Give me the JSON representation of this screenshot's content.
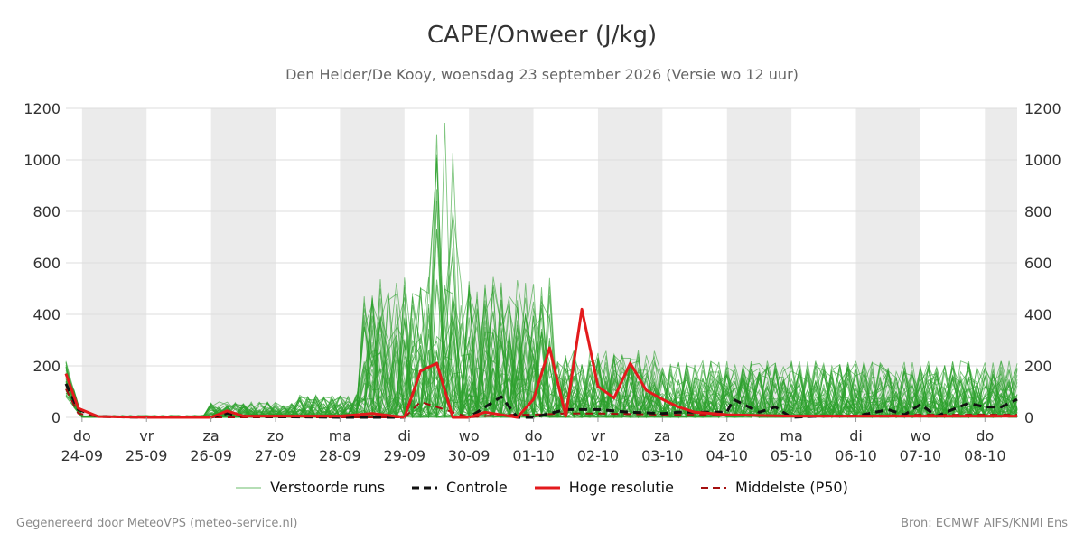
{
  "header": {
    "title": "CAPE/Onweer (J/kg)",
    "subtitle": "Den Helder/De Kooy, woensdag 23 september 2026 (Versie wo 12 uur)"
  },
  "footer": {
    "left": "Gegenereerd door MeteoVPS (meteo-service.nl)",
    "right": "Bron: ECMWF AIFS/KNMI Ens"
  },
  "colors": {
    "ensemble": "#2ca02c",
    "control": "#111111",
    "hires": "#e31a1c",
    "median": "#a50f0f",
    "weekend_band": "#ebebeb",
    "grid": "#dddddd"
  },
  "chart_data": {
    "type": "line",
    "title": "CAPE/Onweer (J/kg)",
    "ylim": [
      0,
      1200
    ],
    "yticks": [
      0,
      200,
      400,
      600,
      800,
      1000,
      1200
    ],
    "xlim": [
      -0.25,
      14.5
    ],
    "x_unit": "days since do 24-09 00 UTC",
    "grid": true,
    "legend_position": "bottom",
    "x_ticks": [
      {
        "x": 0,
        "day": "do",
        "date": "24-09"
      },
      {
        "x": 1,
        "day": "vr",
        "date": "25-09"
      },
      {
        "x": 2,
        "day": "za",
        "date": "26-09"
      },
      {
        "x": 3,
        "day": "zo",
        "date": "27-09"
      },
      {
        "x": 4,
        "day": "ma",
        "date": "28-09"
      },
      {
        "x": 5,
        "day": "di",
        "date": "29-09"
      },
      {
        "x": 6,
        "day": "wo",
        "date": "30-09"
      },
      {
        "x": 7,
        "day": "do",
        "date": "01-10"
      },
      {
        "x": 8,
        "day": "vr",
        "date": "02-10"
      },
      {
        "x": 9,
        "day": "za",
        "date": "03-10"
      },
      {
        "x": 10,
        "day": "zo",
        "date": "04-10"
      },
      {
        "x": 11,
        "day": "ma",
        "date": "05-10"
      },
      {
        "x": 12,
        "day": "di",
        "date": "06-10"
      },
      {
        "x": 13,
        "day": "wo",
        "date": "07-10"
      },
      {
        "x": 14,
        "day": "do",
        "date": "08-10"
      }
    ],
    "shaded_bands": [
      [
        0,
        1
      ],
      [
        2,
        3
      ],
      [
        4,
        5
      ],
      [
        6,
        7
      ],
      [
        8,
        9
      ],
      [
        10,
        11
      ],
      [
        12,
        13
      ],
      [
        14,
        14.5
      ]
    ],
    "series": [
      {
        "name": "Verstoorde runs",
        "style": "ensemble",
        "count": 50
      },
      {
        "name": "Controle",
        "style": "dashed",
        "points": [
          [
            -0.25,
            130
          ],
          [
            -0.06,
            30
          ],
          [
            0.25,
            3
          ],
          [
            1,
            0
          ],
          [
            2,
            0
          ],
          [
            2.25,
            15
          ],
          [
            2.5,
            5
          ],
          [
            3,
            2
          ],
          [
            4,
            0
          ],
          [
            5,
            0
          ],
          [
            5.25,
            180
          ],
          [
            5.5,
            210
          ],
          [
            5.75,
            0
          ],
          [
            6,
            0
          ],
          [
            6.5,
            80
          ],
          [
            6.75,
            0
          ],
          [
            7,
            0
          ],
          [
            7.5,
            30
          ],
          [
            7.75,
            30
          ],
          [
            8,
            30
          ],
          [
            8.5,
            20
          ],
          [
            9,
            15
          ],
          [
            9.25,
            20
          ],
          [
            10,
            20
          ],
          [
            10.1,
            70
          ],
          [
            10.5,
            20
          ],
          [
            10.75,
            40
          ],
          [
            11,
            0
          ],
          [
            11.5,
            5
          ],
          [
            12,
            5
          ],
          [
            12.5,
            30
          ],
          [
            12.75,
            10
          ],
          [
            13,
            50
          ],
          [
            13.25,
            5
          ],
          [
            13.5,
            30
          ],
          [
            13.75,
            55
          ],
          [
            14,
            40
          ],
          [
            14.25,
            40
          ],
          [
            14.5,
            70
          ]
        ]
      },
      {
        "name": "Hoge resolutie",
        "style": "solid",
        "points": [
          [
            -0.25,
            170
          ],
          [
            -0.06,
            35
          ],
          [
            0.25,
            3
          ],
          [
            1,
            0
          ],
          [
            2,
            0
          ],
          [
            2.25,
            25
          ],
          [
            2.5,
            5
          ],
          [
            3,
            5
          ],
          [
            4,
            5
          ],
          [
            4.5,
            15
          ],
          [
            5,
            0
          ],
          [
            5.25,
            180
          ],
          [
            5.5,
            210
          ],
          [
            5.75,
            0
          ],
          [
            6,
            0
          ],
          [
            6.25,
            20
          ],
          [
            6.75,
            0
          ],
          [
            7,
            70
          ],
          [
            7.25,
            270
          ],
          [
            7.5,
            5
          ],
          [
            7.75,
            420
          ],
          [
            8,
            120
          ],
          [
            8.25,
            75
          ],
          [
            8.5,
            210
          ],
          [
            8.75,
            105
          ],
          [
            9,
            70
          ],
          [
            9.25,
            40
          ],
          [
            9.5,
            20
          ],
          [
            10,
            10
          ],
          [
            11,
            5
          ],
          [
            12,
            5
          ],
          [
            13,
            5
          ],
          [
            14,
            5
          ],
          [
            14.5,
            5
          ]
        ]
      },
      {
        "name": "Middelste (P50)",
        "style": "dashed",
        "points": [
          [
            -0.25,
            110
          ],
          [
            -0.06,
            15
          ],
          [
            0.25,
            2
          ],
          [
            1,
            0
          ],
          [
            2,
            0
          ],
          [
            3,
            0
          ],
          [
            4,
            0
          ],
          [
            5,
            0
          ],
          [
            5.25,
            60
          ],
          [
            5.5,
            40
          ],
          [
            6,
            0
          ],
          [
            6.5,
            10
          ],
          [
            7,
            10
          ],
          [
            7.5,
            15
          ],
          [
            8,
            15
          ],
          [
            9,
            10
          ],
          [
            10,
            10
          ],
          [
            11,
            5
          ],
          [
            12,
            5
          ],
          [
            13,
            10
          ],
          [
            14,
            10
          ],
          [
            14.5,
            10
          ]
        ]
      }
    ]
  }
}
